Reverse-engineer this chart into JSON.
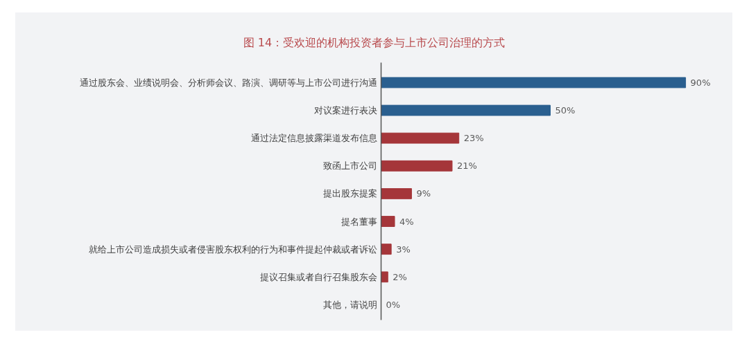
{
  "chart_data": {
    "type": "bar",
    "orientation": "horizontal",
    "title": "图 14：受欢迎的机构投资者参与上市公司治理的方式",
    "categories": [
      "通过股东会、业绩说明会、分析师会议、路演、调研等与上市公司进行沟通",
      "对议案进行表决",
      "通过法定信息披露渠道发布信息",
      "致函上市公司",
      "提出股东提案",
      "提名董事",
      "就给上市公司造成损失或者侵害股东权利的行为和事件提起仲裁或者诉讼",
      "提议召集或者自行召集股东会",
      "其他，请说明"
    ],
    "values": [
      90,
      50,
      23,
      21,
      9,
      4,
      3,
      2,
      0
    ],
    "colors": [
      "#2a5f8f",
      "#2a5f8f",
      "#a5363a",
      "#a5363a",
      "#a5363a",
      "#a5363a",
      "#a5363a",
      "#a5363a",
      "#a5363a"
    ],
    "value_labels": [
      "90%",
      "50%",
      "23%",
      "21%",
      "9%",
      "4%",
      "3%",
      "2%",
      "0%"
    ]
  }
}
